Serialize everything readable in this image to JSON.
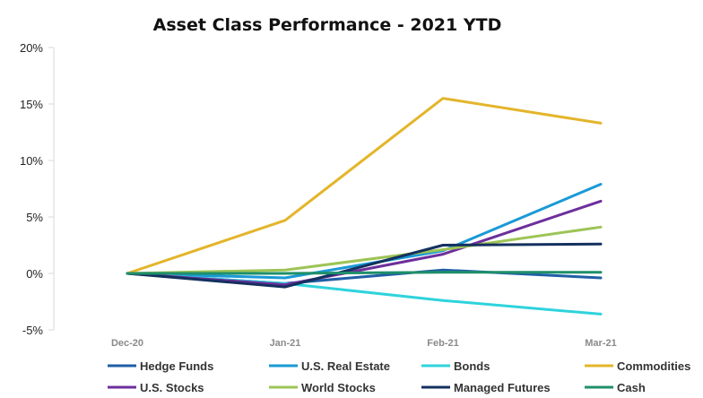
{
  "chart_data": {
    "type": "line",
    "title": "Asset Class Performance - 2021 YTD",
    "xlabel": "",
    "ylabel": "",
    "categories": [
      "Dec-20",
      "Jan-21",
      "Feb-21",
      "Mar-21"
    ],
    "ylim": [
      -5,
      20
    ],
    "yticks": [
      20,
      15,
      10,
      5,
      0,
      -5
    ],
    "ytick_labels": [
      "20%",
      "15%",
      "10%",
      "5%",
      "0%",
      "-5%"
    ],
    "grid": false,
    "legend_position": "bottom",
    "series": [
      {
        "name": "Hedge Funds",
        "color": "#1f5fa6",
        "values": [
          0,
          -0.9,
          0.3,
          -0.4
        ]
      },
      {
        "name": "U.S. Real Estate",
        "color": "#1a9ad6",
        "values": [
          0,
          -0.4,
          2.0,
          7.9
        ]
      },
      {
        "name": "Bonds",
        "color": "#2fd3dc",
        "values": [
          0,
          -0.9,
          -2.4,
          -3.6
        ]
      },
      {
        "name": "Commodities",
        "color": "#e3b52a",
        "values": [
          0,
          4.7,
          15.5,
          13.3
        ]
      },
      {
        "name": "U.S. Stocks",
        "color": "#6d2f9c",
        "values": [
          0,
          -1.0,
          1.7,
          6.4
        ]
      },
      {
        "name": "World Stocks",
        "color": "#9dc456",
        "values": [
          0,
          0.3,
          2.1,
          4.1
        ]
      },
      {
        "name": "Managed Futures",
        "color": "#14305e",
        "values": [
          0,
          -1.2,
          2.5,
          2.6
        ]
      },
      {
        "name": "Cash",
        "color": "#1f8f6a",
        "values": [
          0,
          0.0,
          0.1,
          0.1
        ]
      }
    ]
  }
}
